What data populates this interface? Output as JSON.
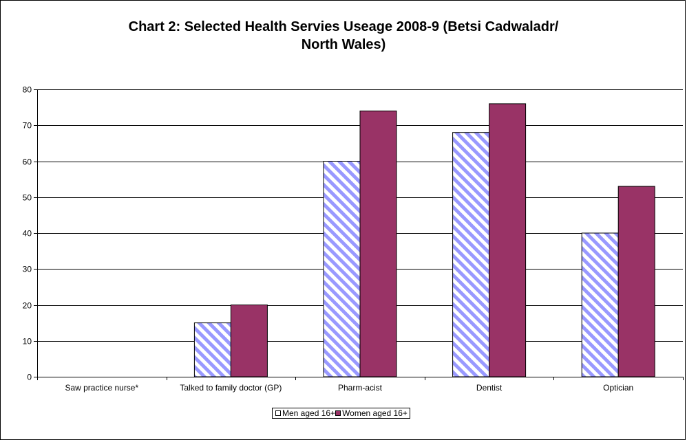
{
  "chart_data": {
    "type": "bar",
    "title_lines": [
      "Chart 2: Selected Health Servies Useage 2008-9 (Betsi Cadwaladr/",
      "North Wales)"
    ],
    "categories": [
      "Saw practice nurse*",
      "Talked to family doctor (GP)",
      "Pharm-acist",
      "Dentist",
      "Optician"
    ],
    "series": [
      {
        "name": "Men aged 16+",
        "values": [
          null,
          15,
          60,
          68,
          40
        ],
        "pattern": "diagonal-stripes",
        "color": "#9999ff"
      },
      {
        "name": "Women aged 16+",
        "values": [
          null,
          20,
          74,
          76,
          53
        ],
        "color": "#993366"
      }
    ],
    "ylim": [
      0,
      80
    ],
    "yticks": [
      0,
      10,
      20,
      30,
      40,
      50,
      60,
      70,
      80
    ],
    "grid": true,
    "legend_position": "bottom",
    "xlabel": "",
    "ylabel": ""
  }
}
